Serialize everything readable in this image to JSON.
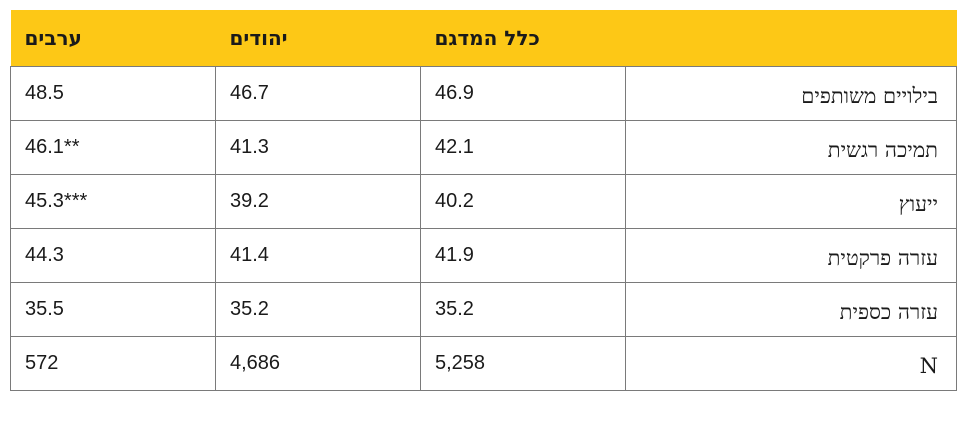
{
  "table": {
    "headers": {
      "row_label": "",
      "total": "כלל המדגם",
      "jews": "יהודים",
      "arabs": "ערבים"
    },
    "rows": [
      {
        "label": "בילויים משותפים",
        "total": "46.9",
        "jews": "46.7",
        "arabs": "48.5"
      },
      {
        "label": "תמיכה רגשית",
        "total": "42.1",
        "jews": "41.3",
        "arabs": "46.1**"
      },
      {
        "label": "ייעוץ",
        "total": "40.2",
        "jews": "39.2",
        "arabs": "45.3***"
      },
      {
        "label": "עזרה פרקטית",
        "total": "41.9",
        "jews": "41.4",
        "arabs": "44.3"
      },
      {
        "label": "עזרה כספית",
        "total": "35.2",
        "jews": "35.2",
        "arabs": "35.5"
      },
      {
        "label": "N",
        "total": "5,258",
        "jews": "4,686",
        "arabs": "572"
      }
    ]
  },
  "colors": {
    "header_background": "#fdc816",
    "border": "#7a7a7a",
    "text": "#1a1a1a"
  }
}
